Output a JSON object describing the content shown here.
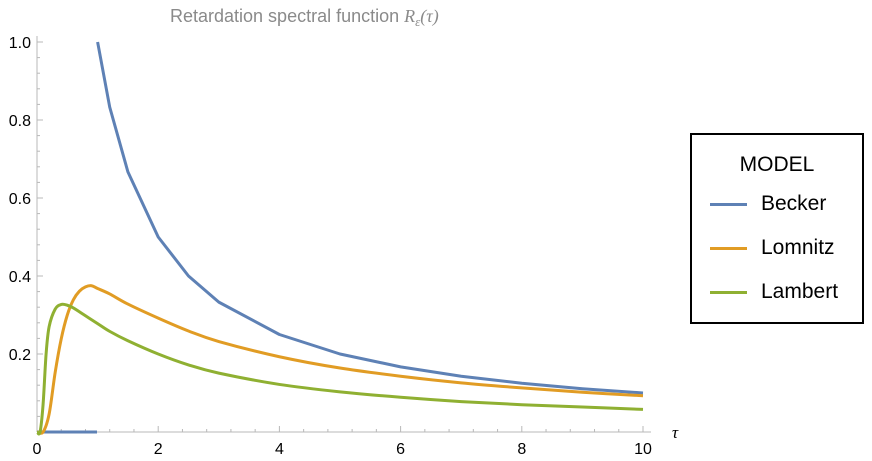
{
  "chart_data": {
    "type": "line",
    "title_prefix": "Retardation spectral function ",
    "title_math": "Rε(τ)",
    "title_symbol": "R",
    "title_subscript": "ε",
    "title_arg": "(τ)",
    "xlabel": "τ",
    "ylabel": "",
    "xlim": [
      0,
      10
    ],
    "ylim": [
      0,
      1.0
    ],
    "xticks": [
      0,
      2,
      4,
      6,
      8,
      10
    ],
    "xtick_labels": [
      "0",
      "2",
      "4",
      "6",
      "8",
      "10"
    ],
    "yticks": [
      0.2,
      0.4,
      0.6,
      0.8,
      1.0
    ],
    "ytick_labels": [
      "0.2",
      "0.4",
      "0.6",
      "0.8",
      "1.0"
    ],
    "grid": false,
    "legend": {
      "title": "MODEL",
      "placement": "right"
    },
    "series": [
      {
        "name": "Becker",
        "color": "#5e81b5",
        "x": [
          0.0,
          0.5,
          0.99,
          1.0,
          1.2,
          1.5,
          2.0,
          2.5,
          3.0,
          4.0,
          5.0,
          6.0,
          7.0,
          8.0,
          9.0,
          10.0
        ],
        "y": [
          0.0,
          0.0,
          0.0,
          1.0,
          0.833,
          0.667,
          0.5,
          0.4,
          0.333,
          0.25,
          0.2,
          0.167,
          0.143,
          0.125,
          0.111,
          0.1
        ]
      },
      {
        "name": "Lomnitz",
        "color": "#e19c24",
        "x": [
          0.0,
          0.1,
          0.2,
          0.3,
          0.4,
          0.5,
          0.6,
          0.7,
          0.8,
          0.9,
          1.0,
          1.2,
          1.5,
          2.0,
          2.5,
          3.0,
          4.0,
          5.0,
          6.0,
          7.0,
          8.0,
          9.0,
          10.0
        ],
        "y": [
          0.0,
          0.0,
          0.046,
          0.153,
          0.239,
          0.3,
          0.339,
          0.361,
          0.372,
          0.375,
          0.368,
          0.354,
          0.328,
          0.292,
          0.259,
          0.232,
          0.193,
          0.164,
          0.143,
          0.126,
          0.113,
          0.102,
          0.093
        ]
      },
      {
        "name": "Lambert",
        "color": "#8fb032",
        "x": [
          0.0,
          0.05,
          0.1,
          0.15,
          0.2,
          0.3,
          0.4,
          0.5,
          0.6,
          0.8,
          1.0,
          1.2,
          1.5,
          2.0,
          2.5,
          3.0,
          4.0,
          5.0,
          6.0,
          7.0,
          8.0,
          9.0,
          10.0
        ],
        "y": [
          0.0,
          0.0,
          0.07,
          0.2,
          0.27,
          0.315,
          0.327,
          0.325,
          0.318,
          0.298,
          0.278,
          0.258,
          0.234,
          0.2,
          0.172,
          0.151,
          0.122,
          0.103,
          0.089,
          0.078,
          0.07,
          0.064,
          0.058
        ]
      }
    ]
  }
}
